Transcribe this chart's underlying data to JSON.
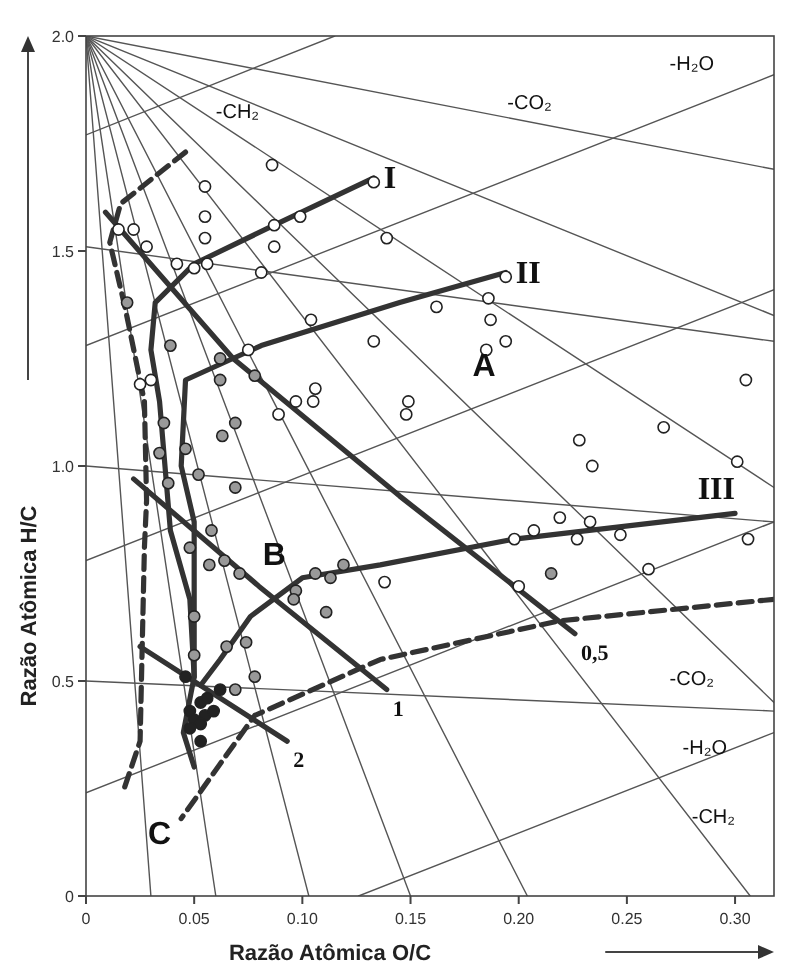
{
  "chart_data": {
    "type": "scatter",
    "xlabel": "Razão Atômica O/C",
    "ylabel": "Razão Atômica H/C",
    "xlim": [
      0,
      0.318
    ],
    "ylim": [
      0,
      2.0
    ],
    "xticks": [
      0,
      {
        "value": 0.05,
        "label": "0.05"
      },
      {
        "value": 0.1,
        "label": "0.10"
      },
      {
        "value": 0.15,
        "label": "0.15"
      },
      {
        "value": 0.2,
        "label": "0.20"
      },
      {
        "value": 0.25,
        "label": "0.25"
      },
      {
        "value": 0.3,
        "label": "0.30"
      }
    ],
    "yticks": [
      0,
      0.5,
      {
        "value": 1,
        "label": "1.0"
      },
      1.5,
      {
        "value": 2,
        "label": "2.0"
      }
    ],
    "grid": false,
    "series": [
      {
        "type": "line",
        "color": "#555555",
        "x": [
          0,
          0.318
        ],
        "values": [
          2.0,
          1.69
        ]
      },
      {
        "type": "line",
        "color": "#555555",
        "x": [
          0,
          0.318
        ],
        "values": [
          1.51,
          1.29
        ]
      },
      {
        "type": "line",
        "color": "#555555",
        "x": [
          0,
          0.318
        ],
        "values": [
          1.0,
          0.87
        ]
      },
      {
        "type": "line",
        "color": "#555555",
        "x": [
          0,
          0.318
        ],
        "values": [
          0.5,
          0.43
        ]
      },
      {
        "type": "line",
        "color": "#555555",
        "x": [
          0,
          0.115
        ],
        "values": [
          1.77,
          2.0
        ]
      },
      {
        "type": "line",
        "color": "#555555",
        "x": [
          0,
          0.318
        ],
        "values": [
          1.28,
          1.91
        ]
      },
      {
        "type": "line",
        "color": "#555555",
        "x": [
          0,
          0.318
        ],
        "values": [
          0.78,
          1.41
        ]
      },
      {
        "type": "line",
        "color": "#555555",
        "x": [
          0,
          0.318
        ],
        "values": [
          0.24,
          0.87
        ]
      },
      {
        "type": "line",
        "color": "#555555",
        "x": [
          0.126,
          0.318
        ],
        "values": [
          0,
          0.38
        ]
      },
      {
        "type": "line",
        "color": "#555555",
        "x": [
          0,
          0.03
        ],
        "values": [
          2.0,
          0
        ]
      },
      {
        "type": "line",
        "color": "#555555",
        "x": [
          0,
          0.06
        ],
        "values": [
          2.0,
          0
        ]
      },
      {
        "type": "line",
        "color": "#555555",
        "x": [
          0,
          0.103
        ],
        "values": [
          2.0,
          0
        ]
      },
      {
        "type": "line",
        "color": "#555555",
        "x": [
          0,
          0.15
        ],
        "values": [
          2.0,
          0
        ]
      },
      {
        "type": "line",
        "color": "#555555",
        "x": [
          0,
          0.204
        ],
        "values": [
          2.0,
          0
        ]
      },
      {
        "type": "line",
        "color": "#555555",
        "x": [
          0,
          0.307
        ],
        "values": [
          2.0,
          0
        ]
      },
      {
        "type": "line",
        "color": "#555555",
        "x": [
          0,
          0.318
        ],
        "values": [
          2.0,
          0.45
        ]
      },
      {
        "type": "line",
        "color": "#555555",
        "x": [
          0,
          0.318
        ],
        "values": [
          2.0,
          0.95
        ]
      },
      {
        "type": "line",
        "color": "#555555",
        "x": [
          0,
          0.318
        ],
        "values": [
          2.0,
          1.35
        ]
      },
      {
        "type": "line",
        "color": "#333333",
        "line_style": "dashed",
        "x": [
          0.046,
          0.016,
          0.011,
          0.018,
          0.027,
          0.028,
          0.027,
          0.025,
          0.017
        ],
        "values": [
          1.73,
          1.61,
          1.52,
          1.37,
          1.15,
          0.92,
          0.81,
          0.36,
          0.24
        ]
      },
      {
        "type": "line",
        "color": "#333333",
        "line_style": "dashed",
        "x": [
          0.318,
          0.219,
          0.136,
          0.078,
          0.044
        ],
        "values": [
          0.69,
          0.64,
          0.55,
          0.42,
          0.18
        ]
      },
      {
        "type": "line",
        "name": "I",
        "color": "#333333",
        "x": [
          0.133,
          0.087,
          0.05,
          0.032,
          0.03,
          0.034,
          0.039,
          0.048,
          0.05,
          0.045,
          0.05
        ],
        "values": [
          1.67,
          1.56,
          1.47,
          1.38,
          1.27,
          1.15,
          0.85,
          0.69,
          0.51,
          0.38,
          0.3
        ]
      },
      {
        "type": "line",
        "name": "II",
        "color": "#333333",
        "x": [
          0.194,
          0.145,
          0.081,
          0.046,
          0.044,
          0.05,
          0.05
        ],
        "values": [
          1.45,
          1.38,
          1.28,
          1.2,
          1.0,
          0.87,
          0.51
        ]
      },
      {
        "type": "line",
        "name": "III",
        "color": "#333333",
        "x": [
          0.3,
          0.198,
          0.136,
          0.1,
          0.076,
          0.062,
          0.053
        ],
        "values": [
          0.89,
          0.83,
          0.77,
          0.74,
          0.65,
          0.55,
          0.49
        ]
      },
      {
        "type": "line",
        "name": "0,5",
        "color": "#333333",
        "x": [
          0.009,
          0.068,
          0.145,
          0.226
        ],
        "values": [
          1.59,
          1.25,
          0.93,
          0.61
        ]
      },
      {
        "type": "line",
        "name": "1",
        "color": "#333333",
        "x": [
          0.022,
          0.08,
          0.139
        ],
        "values": [
          0.97,
          0.72,
          0.48
        ]
      },
      {
        "type": "line",
        "name": "2",
        "color": "#333333",
        "x": [
          0.025,
          0.093
        ],
        "values": [
          0.58,
          0.36
        ]
      },
      {
        "marker": "circle",
        "color": "#ffffff",
        "x": [
          0.086,
          0.133,
          0.055,
          0.055,
          0.087,
          0.099,
          0.139,
          0.055,
          0.087,
          0.042,
          0.05,
          0.056,
          0.081,
          0.015,
          0.022,
          0.028,
          0.104,
          0.133,
          0.075,
          0.106,
          0.105,
          0.097,
          0.089,
          0.03,
          0.025,
          0.194,
          0.186,
          0.162,
          0.187,
          0.194,
          0.185,
          0.149,
          0.148,
          0.305,
          0.267,
          0.228,
          0.234,
          0.301,
          0.219,
          0.233,
          0.207,
          0.198,
          0.227,
          0.247,
          0.306,
          0.26,
          0.2,
          0.138
        ],
        "values": [
          1.7,
          1.66,
          1.65,
          1.58,
          1.56,
          1.58,
          1.53,
          1.53,
          1.51,
          1.47,
          1.46,
          1.47,
          1.45,
          1.55,
          1.55,
          1.51,
          1.34,
          1.29,
          1.27,
          1.18,
          1.15,
          1.15,
          1.12,
          1.2,
          1.19,
          1.44,
          1.39,
          1.37,
          1.34,
          1.29,
          1.27,
          1.15,
          1.12,
          1.2,
          1.09,
          1.06,
          1.0,
          1.01,
          0.88,
          0.87,
          0.85,
          0.83,
          0.83,
          0.84,
          0.83,
          0.76,
          0.72,
          0.73
        ]
      },
      {
        "marker": "circle",
        "color": "#999999",
        "x": [
          0.019,
          0.039,
          0.062,
          0.078,
          0.062,
          0.069,
          0.063,
          0.036,
          0.034,
          0.046,
          0.052,
          0.069,
          0.038,
          0.048,
          0.058,
          0.064,
          0.071,
          0.057,
          0.106,
          0.113,
          0.119,
          0.097,
          0.096,
          0.111,
          0.05,
          0.05,
          0.065,
          0.074,
          0.078,
          0.069,
          0.215
        ],
        "values": [
          1.38,
          1.28,
          1.25,
          1.21,
          1.2,
          1.1,
          1.07,
          1.1,
          1.03,
          1.04,
          0.98,
          0.95,
          0.96,
          0.81,
          0.85,
          0.78,
          0.75,
          0.77,
          0.75,
          0.74,
          0.77,
          0.71,
          0.69,
          0.66,
          0.65,
          0.56,
          0.58,
          0.59,
          0.51,
          0.48,
          0.75
        ]
      },
      {
        "marker": "circle",
        "color": "#222222",
        "x": [
          0.048,
          0.053,
          0.062,
          0.05,
          0.055,
          0.059,
          0.053,
          0.048,
          0.053,
          0.056,
          0.046
        ],
        "values": [
          0.43,
          0.45,
          0.48,
          0.41,
          0.42,
          0.43,
          0.4,
          0.39,
          0.36,
          0.46,
          0.51
        ]
      }
    ],
    "annotations": [
      "A",
      "B",
      "C",
      "-CH₂",
      "-CO₂",
      "-H₂O",
      "-CO₂",
      "-H₂O",
      "-CH₂"
    ]
  }
}
